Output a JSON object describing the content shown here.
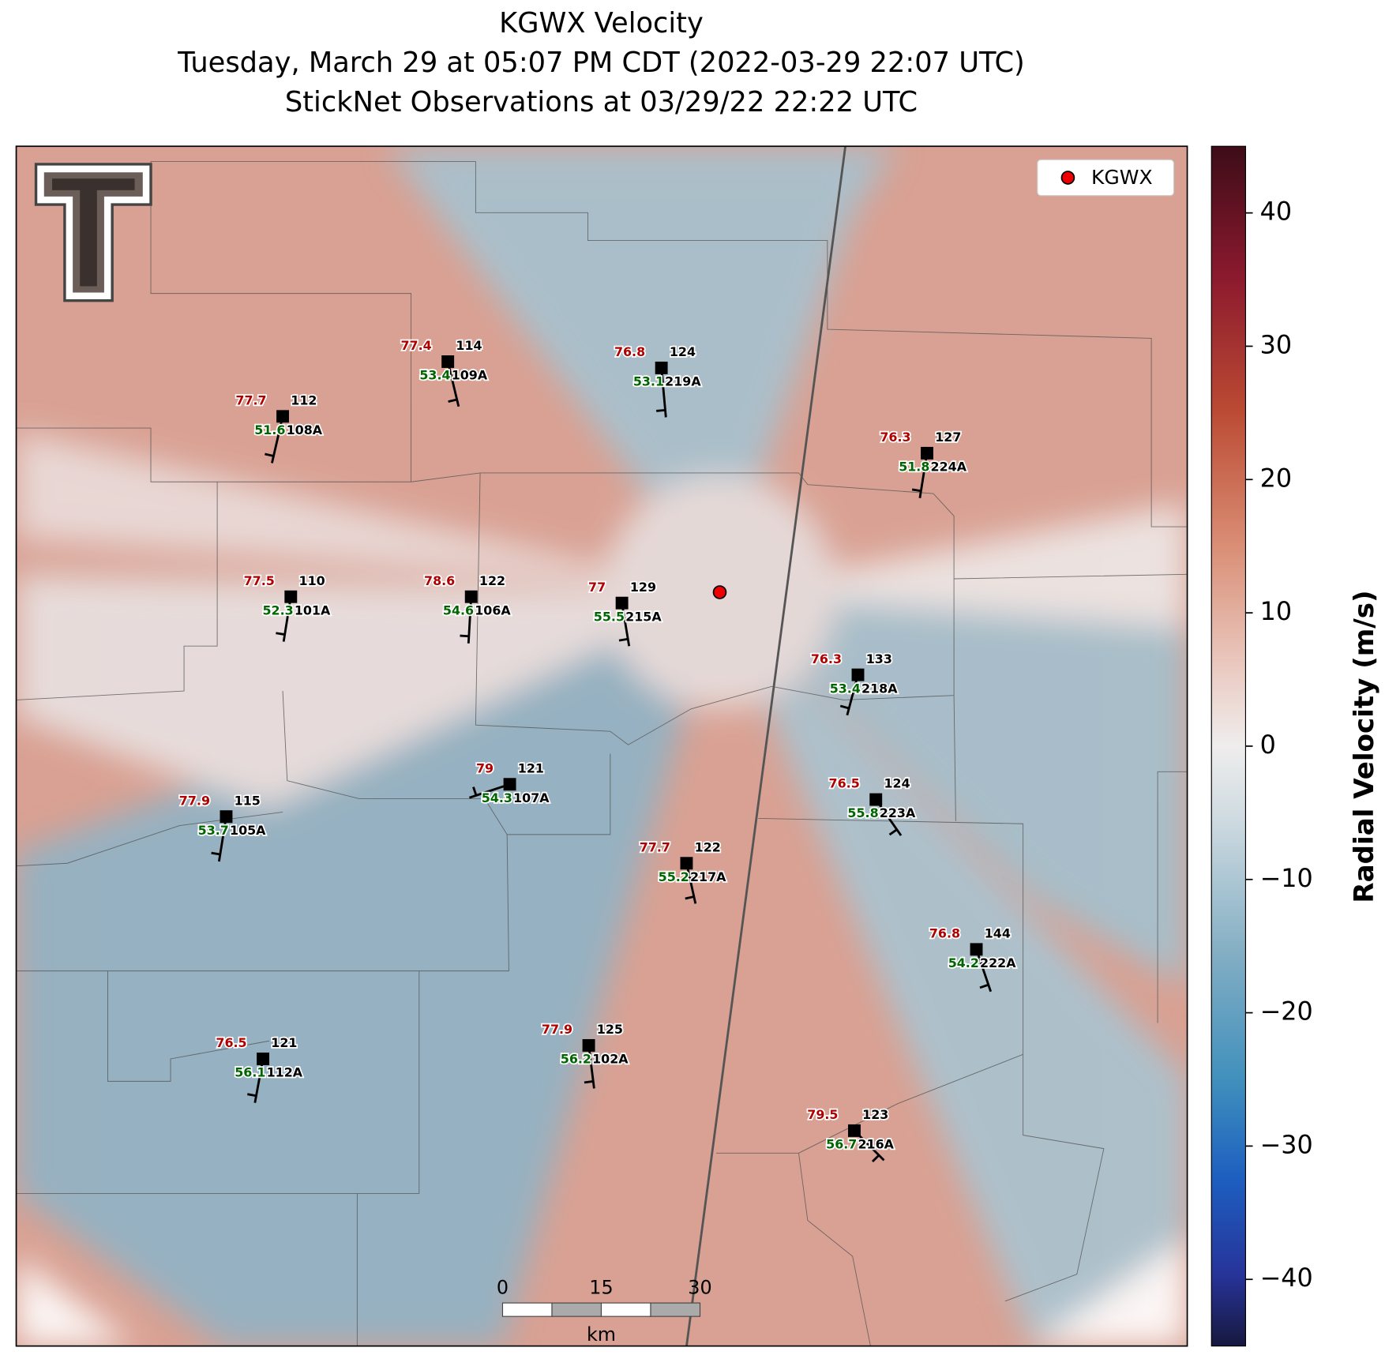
{
  "title": [
    "KGWX Velocity",
    "Tuesday, March 29 at 05:07 PM CDT (2022-03-29 22:07 UTC)",
    "StickNet Observations at 03/29/22 22:22 UTC"
  ],
  "legend": "KGWX",
  "colorbar": {
    "label": "Radial Velocity (m/s)",
    "lim": [
      -45,
      45
    ],
    "ticks": [
      {
        "value": -40,
        "label": "−40"
      },
      {
        "value": -30,
        "label": "−30"
      },
      {
        "value": -20,
        "label": "−20"
      },
      {
        "value": -10,
        "label": "−10"
      },
      0,
      10,
      20,
      30,
      40
    ]
  },
  "scale_bar": {
    "ticks": [
      0,
      15,
      30
    ],
    "unit": "km"
  },
  "stations": [
    {
      "name": "108A",
      "number": 112,
      "temperature": 77.7,
      "dewpoint": 51.6
    },
    {
      "name": "109A",
      "number": 114,
      "temperature": 77.4,
      "dewpoint": 53.4
    },
    {
      "name": "219A",
      "number": 124,
      "temperature": 76.8,
      "dewpoint": 53.1
    },
    {
      "name": "224A",
      "number": 127,
      "temperature": 76.3,
      "dewpoint": 51.8
    },
    {
      "name": "101A",
      "number": 110,
      "temperature": 77.5,
      "dewpoint": 52.3
    },
    {
      "name": "106A",
      "number": 122,
      "temperature": 78.6,
      "dewpoint": 54.6
    },
    {
      "name": "215A",
      "number": 129,
      "temperature": 77.0,
      "dewpoint": 55.5
    },
    {
      "name": "218A",
      "number": 133,
      "temperature": 76.3,
      "dewpoint": 53.4
    },
    {
      "name": "107A",
      "number": 121,
      "temperature": 79.0,
      "dewpoint": 54.3
    },
    {
      "name": "105A",
      "number": 115,
      "temperature": 77.9,
      "dewpoint": 53.7
    },
    {
      "name": "223A",
      "number": 124,
      "temperature": 76.5,
      "dewpoint": 55.8
    },
    {
      "name": "217A",
      "number": 122,
      "temperature": 77.7,
      "dewpoint": 55.2
    },
    {
      "name": "222A",
      "number": 144,
      "temperature": 76.8,
      "dewpoint": 54.2
    },
    {
      "name": "112A",
      "number": 121,
      "temperature": 76.5,
      "dewpoint": 56.1
    },
    {
      "name": "102A",
      "number": 125,
      "temperature": 77.9,
      "dewpoint": 56.2
    },
    {
      "name": "216A",
      "number": 123,
      "temperature": 79.5,
      "dewpoint": 56.7
    }
  ]
}
